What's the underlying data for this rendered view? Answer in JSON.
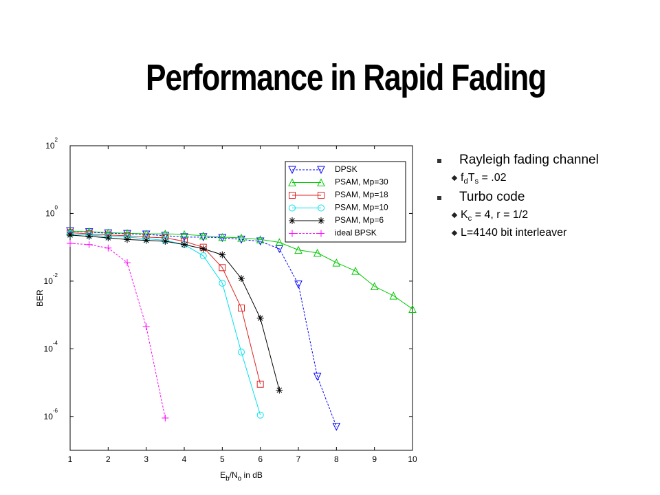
{
  "title": "Performance in Rapid Fading",
  "bullets": [
    {
      "segments": [
        {
          "text": "Rayleigh fading channel"
        }
      ],
      "children": [
        {
          "segments": [
            {
              "text": "f"
            },
            {
              "text": "d",
              "sub": true
            },
            {
              "text": "T"
            },
            {
              "text": "s",
              "sub": true
            },
            {
              "text": " = .02"
            }
          ]
        }
      ]
    },
    {
      "segments": [
        {
          "text": "Turbo code"
        }
      ],
      "children": [
        {
          "segments": [
            {
              "text": "K"
            },
            {
              "text": "c",
              "sub": true
            },
            {
              "text": " = 4, r = 1/2"
            }
          ]
        },
        {
          "segments": [
            {
              "text": "L=4140 bit interleaver"
            }
          ]
        }
      ]
    }
  ],
  "chart_data": {
    "type": "line",
    "ylabel": "BER",
    "xlabel": [
      {
        "text": "E"
      },
      {
        "text": "b",
        "sub": true
      },
      {
        "text": "/N"
      },
      {
        "text": "o",
        "sub": true
      },
      {
        "text": " in dB"
      }
    ],
    "xlim": [
      1,
      10
    ],
    "xticks": [
      1,
      2,
      3,
      4,
      5,
      6,
      7,
      8,
      9,
      10
    ],
    "ylim": [
      1e-07,
      100
    ],
    "log_y": true,
    "yticks": [
      {
        "value": 100,
        "label": "10",
        "exponent": "2"
      },
      {
        "value": 1,
        "label": "10",
        "exponent": "0"
      },
      {
        "value": 0.01,
        "label": "10",
        "exponent": "-2"
      },
      {
        "value": 0.0001,
        "label": "10",
        "exponent": "-4"
      },
      {
        "value": 1e-06,
        "label": "10",
        "exponent": "-6"
      }
    ],
    "legend": "upper right",
    "series": [
      {
        "name": "DPSK",
        "color": "#0000ff",
        "dashed": true,
        "marker": "triangle-down",
        "x": [
          1,
          1.5,
          2,
          2.5,
          3,
          3.5,
          4,
          4.5,
          5,
          5.5,
          6,
          6.5,
          7,
          7.5,
          8
        ],
        "values": [
          0.3,
          0.28,
          0.26,
          0.25,
          0.24,
          0.22,
          0.2,
          0.2,
          0.19,
          0.17,
          0.15,
          0.09,
          0.008,
          1.5e-05,
          5e-07
        ]
      },
      {
        "name": "PSAM, Mp=30",
        "color": "#00c800",
        "dashed": false,
        "marker": "triangle-up",
        "x": [
          1,
          1.5,
          2,
          2.5,
          3,
          3.5,
          4,
          4.5,
          5,
          5.5,
          6,
          6.5,
          7,
          7.5,
          8,
          8.5,
          9,
          9.5,
          10
        ],
        "values": [
          0.3,
          0.29,
          0.27,
          0.26,
          0.25,
          0.25,
          0.24,
          0.22,
          0.2,
          0.19,
          0.17,
          0.14,
          0.083,
          0.068,
          0.035,
          0.02,
          0.007,
          0.0037,
          0.0015
        ]
      },
      {
        "name": "PSAM, Mp=18",
        "color": "#e02020",
        "dashed": false,
        "marker": "square",
        "x": [
          1,
          1.5,
          2,
          2.5,
          3,
          3.5,
          4,
          4.5,
          5,
          5.5,
          6
        ],
        "values": [
          0.27,
          0.25,
          0.23,
          0.22,
          0.2,
          0.19,
          0.15,
          0.1,
          0.025,
          0.0016,
          9e-06
        ]
      },
      {
        "name": "PSAM, Mp=10",
        "color": "#00e0f0",
        "dashed": false,
        "marker": "circle",
        "x": [
          1,
          1.5,
          2,
          2.5,
          3,
          3.5,
          4,
          4.5,
          5,
          5.5,
          6
        ],
        "values": [
          0.25,
          0.23,
          0.21,
          0.2,
          0.18,
          0.16,
          0.12,
          0.056,
          0.0087,
          8e-05,
          1.1e-06
        ]
      },
      {
        "name": "PSAM, Mp=6",
        "color": "#000000",
        "dashed": false,
        "marker": "star",
        "x": [
          1,
          1.5,
          2,
          2.5,
          3,
          3.5,
          4,
          4.5,
          5,
          5.5,
          6,
          6.5
        ],
        "values": [
          0.23,
          0.21,
          0.19,
          0.17,
          0.16,
          0.15,
          0.12,
          0.09,
          0.06,
          0.012,
          0.0008,
          6e-06
        ]
      },
      {
        "name": "ideal BPSK",
        "color": "#ff00ff",
        "dashed": true,
        "marker": "plus",
        "x": [
          1,
          1.5,
          2,
          2.5,
          3,
          3.5
        ],
        "values": [
          0.13,
          0.12,
          0.095,
          0.035,
          0.00045,
          9e-07
        ]
      }
    ]
  }
}
